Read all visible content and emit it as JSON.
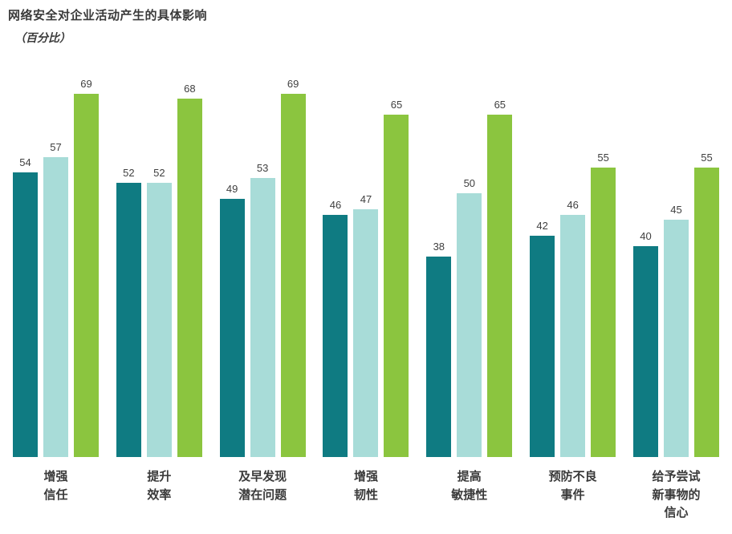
{
  "header": {
    "title": "网络安全对企业活动产生的具体影响",
    "subtitle": "（百分比）"
  },
  "chart_data": {
    "type": "bar",
    "title": "网络安全对企业活动产生的具体影响",
    "subtitle": "（百分比）",
    "categories": [
      [
        "增强",
        "信任"
      ],
      [
        "提升",
        "效率"
      ],
      [
        "及早发现",
        "潜在问题"
      ],
      [
        "增强",
        "韧性"
      ],
      [
        "提高",
        "敏捷性"
      ],
      [
        "预防不良",
        "事件"
      ],
      [
        "给予尝试",
        "新事物的",
        "信心"
      ]
    ],
    "series": [
      {
        "name": "series-dark-teal",
        "color": "#0f7b82",
        "values": [
          54,
          52,
          49,
          46,
          38,
          42,
          40
        ]
      },
      {
        "name": "series-light-teal",
        "color": "#a8dcd8",
        "values": [
          57,
          52,
          53,
          47,
          50,
          46,
          45
        ]
      },
      {
        "name": "series-green",
        "color": "#8bc53f",
        "values": [
          69,
          68,
          69,
          65,
          65,
          55,
          55
        ]
      }
    ],
    "ylim": [
      0,
      70
    ],
    "grid": false,
    "legend": "none",
    "value_labels": true,
    "text_color": "#404040"
  }
}
